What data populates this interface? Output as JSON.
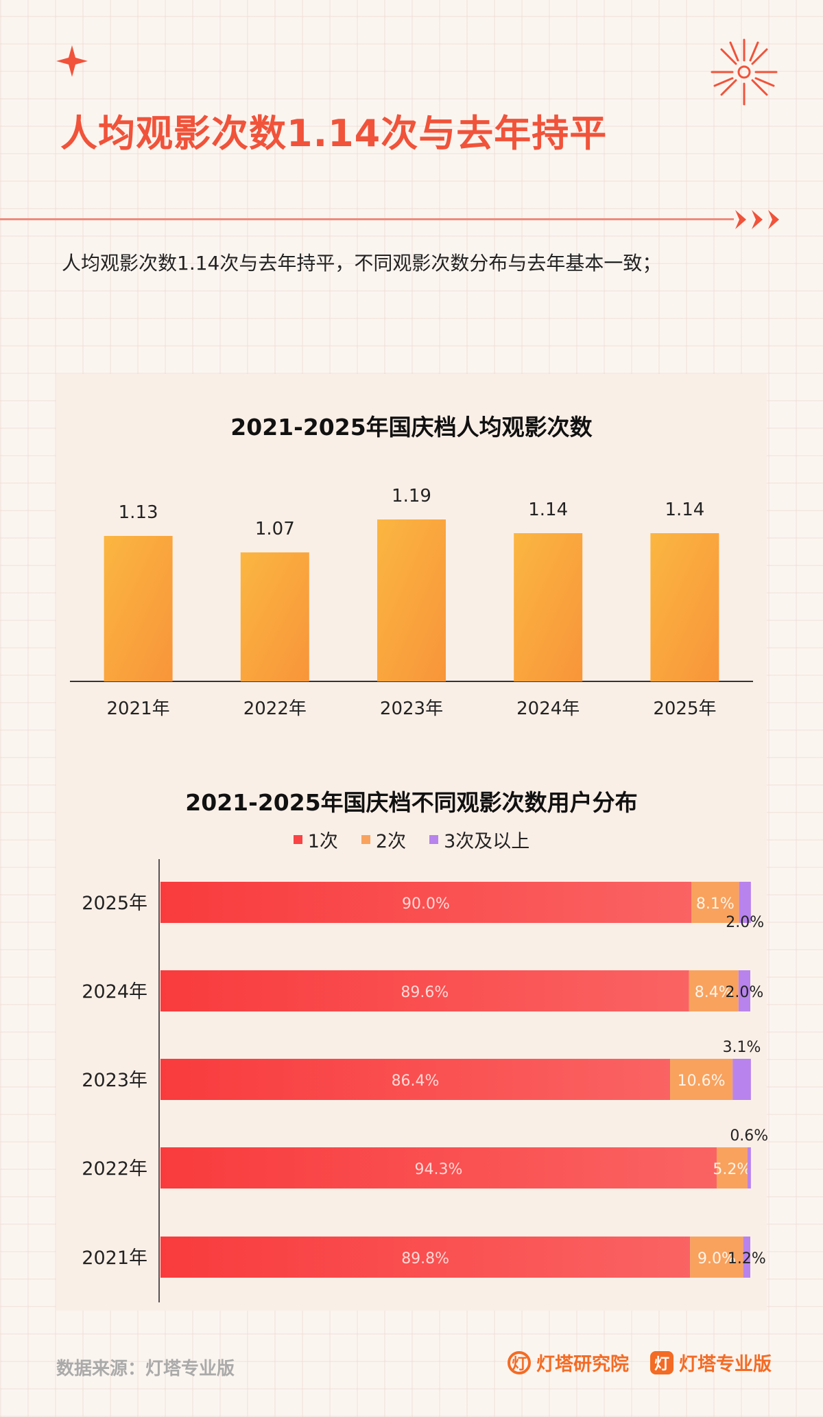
{
  "header": {
    "title": "人均观影次数1.14次与去年持平",
    "subtitle": "人均观影次数1.14次与去年持平，不同观影次数分布与去年基本一致；"
  },
  "colors": {
    "accent": "#f0533a",
    "bar_top": "#fbb641",
    "bar_bottom": "#f8953a",
    "series_1": "#f94345",
    "series_2": "#f8a25e",
    "series_3": "#b883ec"
  },
  "chart_data": [
    {
      "type": "bar",
      "title": "2021-2025年国庆档人均观影次数",
      "categories": [
        "2021年",
        "2022年",
        "2023年",
        "2024年",
        "2025年"
      ],
      "values": [
        1.13,
        1.07,
        1.19,
        1.14,
        1.14
      ],
      "value_labels": [
        "1.13",
        "1.07",
        "1.19",
        "1.14",
        "1.14"
      ],
      "xlabel": "",
      "ylabel": "",
      "ylim": [
        0.6,
        1.19
      ],
      "grid": false
    },
    {
      "type": "bar",
      "orientation": "horizontal",
      "stacked": true,
      "title": "2021-2025年国庆档不同观影次数用户分布",
      "categories": [
        "2025年",
        "2024年",
        "2023年",
        "2022年",
        "2021年"
      ],
      "series": [
        {
          "name": "1次",
          "values": [
            90.0,
            89.6,
            86.4,
            94.3,
            89.8
          ],
          "labels": [
            "90.0%",
            "89.6%",
            "86.4%",
            "94.3%",
            "89.8%"
          ]
        },
        {
          "name": "2次",
          "values": [
            8.1,
            8.4,
            10.6,
            5.2,
            9.0
          ],
          "labels": [
            "8.1%",
            "8.4%",
            "10.6%",
            "5.2%",
            "9.0%"
          ]
        },
        {
          "name": "3次及以上",
          "values": [
            2.0,
            2.0,
            3.1,
            0.6,
            1.2
          ],
          "labels": [
            "2.0%",
            "2.0%",
            "3.1%",
            "0.6%",
            "1.2%"
          ]
        }
      ],
      "xlim": [
        0,
        100
      ],
      "legend_position": "top",
      "grid": false
    }
  ],
  "footer": {
    "source": "数据来源：灯塔专业版",
    "brand_research": "灯塔研究院",
    "brand_pro": "灯塔专业版"
  }
}
